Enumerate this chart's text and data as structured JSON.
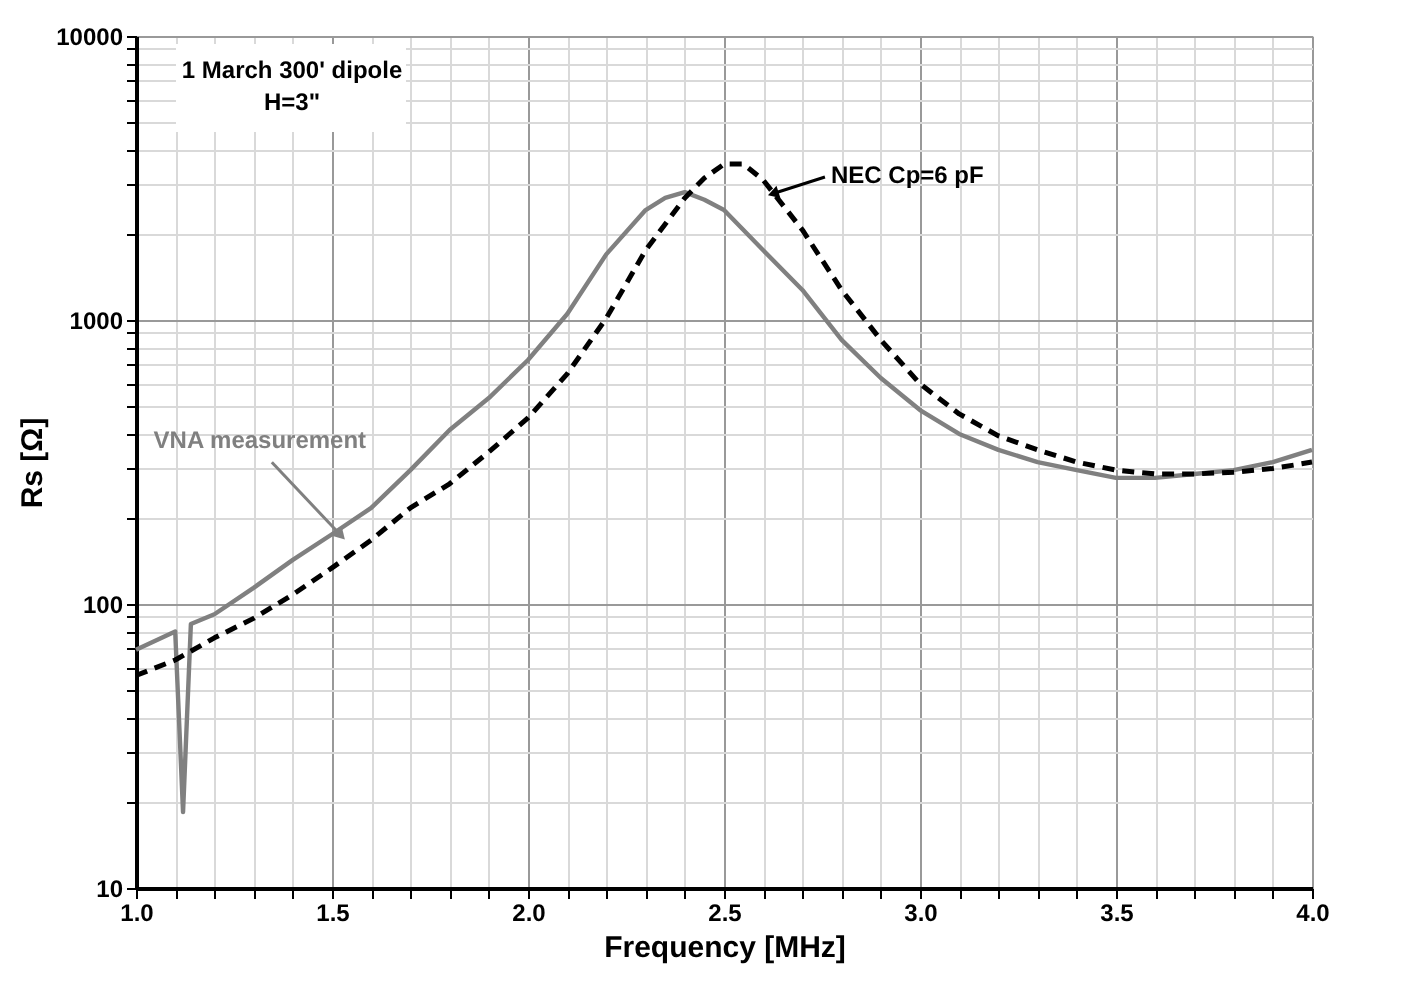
{
  "chart_data": {
    "type": "line",
    "xlabel": "Frequency [MHz]",
    "ylabel": "Rs [Ω]",
    "log": "y",
    "grid": true,
    "xlim": [
      1.0,
      4.0
    ],
    "xticks": [
      {
        "value": 1.0,
        "label": "1.0"
      },
      {
        "value": 1.1,
        "label": null
      },
      {
        "value": 1.2,
        "label": null
      },
      {
        "value": 1.3,
        "label": null
      },
      {
        "value": 1.4,
        "label": null
      },
      {
        "value": 1.5,
        "label": "1.5"
      },
      {
        "value": 1.6,
        "label": null
      },
      {
        "value": 1.7,
        "label": null
      },
      {
        "value": 1.8,
        "label": null
      },
      {
        "value": 1.9,
        "label": null
      },
      {
        "value": 2.0,
        "label": "2.0"
      },
      {
        "value": 2.1,
        "label": null
      },
      {
        "value": 2.2,
        "label": null
      },
      {
        "value": 2.3,
        "label": null
      },
      {
        "value": 2.4,
        "label": null
      },
      {
        "value": 2.5,
        "label": "2.5"
      },
      {
        "value": 2.6,
        "label": null
      },
      {
        "value": 2.7,
        "label": null
      },
      {
        "value": 2.8,
        "label": null
      },
      {
        "value": 2.9,
        "label": null
      },
      {
        "value": 3.0,
        "label": "3.0"
      },
      {
        "value": 3.1,
        "label": null
      },
      {
        "value": 3.2,
        "label": null
      },
      {
        "value": 3.3,
        "label": null
      },
      {
        "value": 3.4,
        "label": null
      },
      {
        "value": 3.5,
        "label": "3.5"
      },
      {
        "value": 3.6,
        "label": null
      },
      {
        "value": 3.7,
        "label": null
      },
      {
        "value": 3.8,
        "label": null
      },
      {
        "value": 3.9,
        "label": null
      },
      {
        "value": 4.0,
        "label": "4.0"
      }
    ],
    "ylim": [
      10,
      10000
    ],
    "yticks": [
      10,
      {
        "value": 20,
        "label": null
      },
      {
        "value": 30,
        "label": null
      },
      {
        "value": 40,
        "label": null
      },
      {
        "value": 50,
        "label": null
      },
      {
        "value": 60,
        "label": null
      },
      {
        "value": 70,
        "label": null
      },
      {
        "value": 80,
        "label": null
      },
      {
        "value": 90,
        "label": null
      },
      100,
      {
        "value": 200,
        "label": null
      },
      {
        "value": 300,
        "label": null
      },
      {
        "value": 400,
        "label": null
      },
      {
        "value": 500,
        "label": null
      },
      {
        "value": 600,
        "label": null
      },
      {
        "value": 700,
        "label": null
      },
      {
        "value": 800,
        "label": null
      },
      {
        "value": 900,
        "label": null
      },
      1000,
      {
        "value": 2000,
        "label": null
      },
      {
        "value": 3000,
        "label": null
      },
      {
        "value": 4000,
        "label": null
      },
      {
        "value": 5000,
        "label": null
      },
      {
        "value": 6000,
        "label": null
      },
      {
        "value": 7000,
        "label": null
      },
      {
        "value": 8000,
        "label": null
      },
      {
        "value": 9000,
        "label": null
      },
      10000
    ],
    "series": [
      {
        "color": "#808080",
        "line_style": "solid",
        "x": [
          1.0,
          1.1,
          1.12,
          1.14,
          1.2,
          1.3,
          1.4,
          1.5,
          1.6,
          1.7,
          1.8,
          1.9,
          2.0,
          2.1,
          2.2,
          2.3,
          2.35,
          2.4,
          2.45,
          2.5,
          2.6,
          2.7,
          2.8,
          2.9,
          3.0,
          3.1,
          3.2,
          3.3,
          3.4,
          3.5,
          3.6,
          3.7,
          3.8,
          3.9,
          4.0
        ],
        "values": [
          69,
          80,
          18.5,
          85,
          92,
          114,
          143,
          176,
          218,
          296,
          410,
          531,
          723,
          1050,
          1706,
          2438,
          2690,
          2820,
          2650,
          2440,
          1760,
          1276,
          851,
          625,
          482,
          397,
          349,
          316,
          296,
          278,
          278,
          287,
          296,
          316,
          349
        ]
      },
      {
        "color": "#000000",
        "line_style": "dashed",
        "x": [
          1.0,
          1.1,
          1.2,
          1.3,
          1.4,
          1.5,
          1.6,
          1.7,
          1.8,
          1.9,
          2.0,
          2.1,
          2.2,
          2.3,
          2.4,
          2.45,
          2.5,
          2.55,
          2.6,
          2.7,
          2.8,
          2.9,
          3.0,
          3.1,
          3.2,
          3.3,
          3.4,
          3.5,
          3.6,
          3.7,
          3.8,
          3.9,
          4.0
        ],
        "values": [
          56,
          63.5,
          76,
          89,
          108,
          134,
          168,
          218,
          265,
          343,
          452,
          646,
          1016,
          1760,
          2690,
          3160,
          3540,
          3540,
          3110,
          2075,
          1276,
          851,
          596,
          467,
          391,
          349,
          316,
          296,
          287,
          287,
          291,
          300,
          316
        ]
      }
    ],
    "annotations": [
      {
        "text": "VNA measurement",
        "x": 1.52,
        "y": 176
      },
      {
        "text": "NEC Cp=6 pF",
        "x": 2.63,
        "y": 2800
      },
      "1 March 300' dipole\nH=3\""
    ]
  }
}
